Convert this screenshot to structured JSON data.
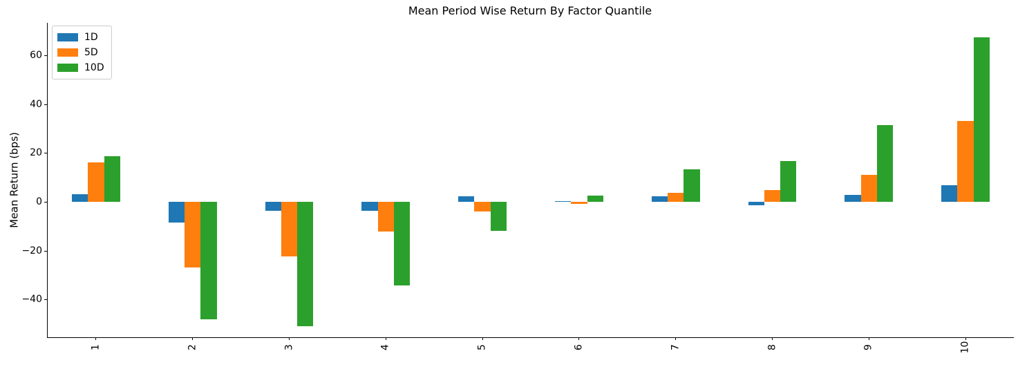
{
  "chart_data": {
    "type": "bar",
    "title": "Mean Period Wise Return By Factor Quantile",
    "xlabel": "",
    "ylabel": "Mean Return (bps)",
    "categories": [
      "1",
      "2",
      "3",
      "4",
      "5",
      "6",
      "7",
      "8",
      "9",
      "10"
    ],
    "series": [
      {
        "name": "1D",
        "color": "#1f77b4",
        "values": [
          3.3,
          -8.5,
          -3.5,
          -3.5,
          2.5,
          0.4,
          2.3,
          -1.3,
          3.0,
          6.8
        ]
      },
      {
        "name": "5D",
        "color": "#ff7f0e",
        "values": [
          16.4,
          -26.7,
          -22.3,
          -12.0,
          -3.9,
          -0.8,
          3.7,
          4.9,
          11.2,
          33.3
        ]
      },
      {
        "name": "10D",
        "color": "#2ca02c",
        "values": [
          18.7,
          -48.1,
          -50.9,
          -34.2,
          -11.9,
          2.7,
          13.4,
          16.9,
          31.6,
          67.6
        ]
      }
    ],
    "ylim": [
      -55.4,
      73.5
    ],
    "yticks": [
      {
        "label": "60",
        "value": 60
      },
      {
        "label": "40",
        "value": 40
      },
      {
        "label": "20",
        "value": 20
      },
      {
        "label": "0",
        "value": 0
      },
      {
        "label": "−20",
        "value": -20
      },
      {
        "label": "−40",
        "value": -40
      }
    ],
    "legend_position": "upper left",
    "grid": false
  }
}
